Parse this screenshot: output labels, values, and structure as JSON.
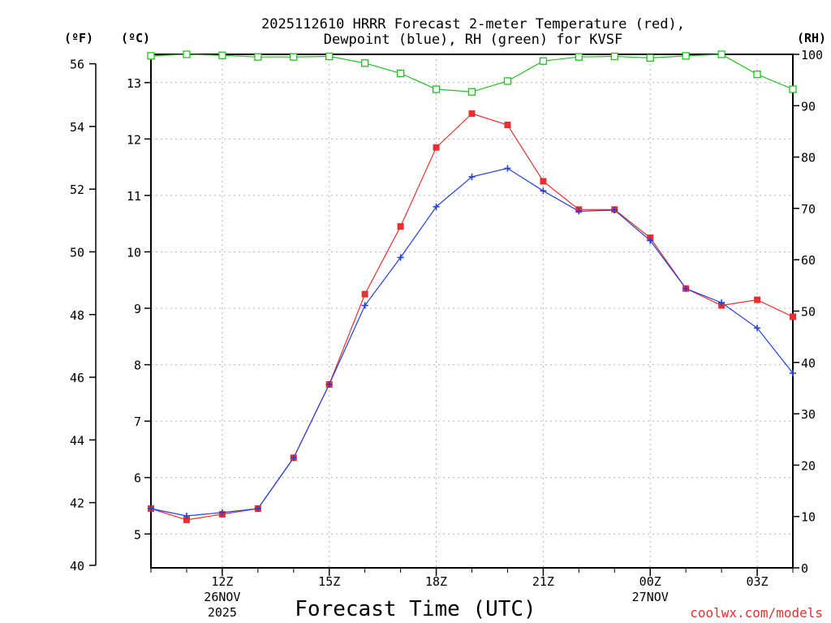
{
  "chart_data": {
    "type": "line",
    "title_line1": "2025112610 HRRR Forecast 2-meter Temperature (red),",
    "title_line2": "Dewpoint (blue), RH (green) for KVSF",
    "xlabel": "Forecast Time (UTC)",
    "credit": "coolwx.com/models",
    "units": {
      "fahrenheit": "(ºF)",
      "celsius": "(ºC)",
      "rh": "(RH)"
    },
    "x_hours": [
      10,
      11,
      12,
      13,
      14,
      15,
      16,
      17,
      18,
      19,
      20,
      21,
      22,
      23,
      24,
      25,
      26,
      27,
      28
    ],
    "xlim": [
      10,
      28
    ],
    "x_ticks": [
      {
        "hour": 12,
        "label": "12Z",
        "date": "26NOV",
        "year": "2025"
      },
      {
        "hour": 15,
        "label": "15Z",
        "date": "",
        "year": ""
      },
      {
        "hour": 18,
        "label": "18Z",
        "date": "",
        "year": ""
      },
      {
        "hour": 21,
        "label": "21Z",
        "date": "",
        "year": ""
      },
      {
        "hour": 24,
        "label": "00Z",
        "date": "27NOV",
        "year": ""
      },
      {
        "hour": 27,
        "label": "03Z",
        "date": "",
        "year": ""
      }
    ],
    "celsius_axis": {
      "min": 4.4,
      "max": 13.5,
      "ticks": [
        5,
        6,
        7,
        8,
        9,
        10,
        11,
        12,
        13
      ]
    },
    "fahrenheit_axis": {
      "ticks": [
        40,
        42,
        44,
        46,
        48,
        50,
        52,
        54,
        56
      ]
    },
    "rh_axis": {
      "min": 0,
      "max": 100,
      "ticks": [
        0,
        10,
        20,
        30,
        40,
        50,
        60,
        70,
        80,
        90,
        100
      ]
    },
    "series": [
      {
        "name": "Temperature",
        "color": "#e83030",
        "marker": "filled-square",
        "axis": "celsius",
        "values": [
          5.45,
          5.25,
          5.35,
          5.45,
          6.35,
          7.65,
          9.25,
          10.45,
          11.85,
          12.45,
          12.25,
          11.25,
          10.75,
          10.75,
          10.25,
          9.35,
          9.05,
          9.15,
          8.85
        ]
      },
      {
        "name": "Dewpoint",
        "color": "#2040e0",
        "marker": "plus",
        "axis": "celsius",
        "values": [
          5.45,
          5.32,
          5.38,
          5.45,
          6.35,
          7.65,
          9.05,
          9.9,
          10.8,
          11.33,
          11.48,
          11.08,
          10.72,
          10.74,
          10.2,
          9.35,
          9.1,
          8.65,
          7.85
        ]
      },
      {
        "name": "RH",
        "color": "#20c020",
        "marker": "open-square",
        "axis": "rh",
        "values": [
          99.7,
          100,
          99.8,
          99.5,
          99.5,
          99.6,
          98.3,
          96.3,
          93.2,
          92.7,
          94.8,
          98.7,
          99.5,
          99.6,
          99.3,
          99.7,
          100,
          96.1,
          93.2
        ]
      }
    ]
  }
}
